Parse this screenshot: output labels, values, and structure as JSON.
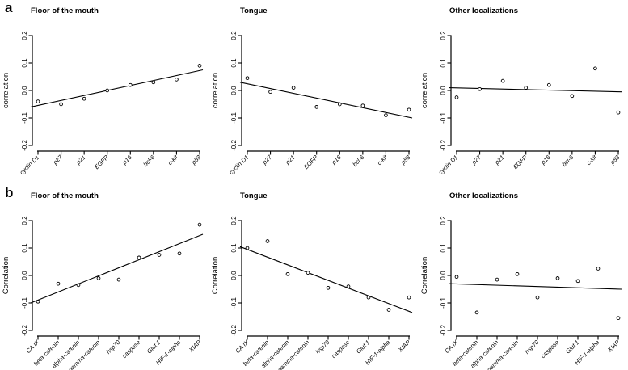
{
  "figure": {
    "background": "#ffffff",
    "ink_color": "#000000",
    "panels": [
      {
        "label": "a"
      },
      {
        "label": "b"
      }
    ]
  },
  "chart_data": [
    {
      "panel": "a",
      "type": "scatter",
      "title": "Floor of the mouth",
      "ylabel": "correlation",
      "xlabel": "",
      "ylim": [
        -0.2,
        0.2
      ],
      "yticks": [
        0.2,
        0.1,
        0.0,
        -0.1,
        -0.2
      ],
      "grid": false,
      "legend": "none",
      "marker": "open-circle",
      "marker_color": "#000000",
      "categories": [
        "cyclin D1",
        "p27",
        "p21",
        "EGFR",
        "p16",
        "bcl-6",
        "c-kit",
        "p53"
      ],
      "values": [
        -0.04,
        -0.05,
        -0.03,
        0.0,
        0.02,
        0.03,
        0.04,
        0.09
      ],
      "trend_line": {
        "y_at_left": -0.06,
        "y_at_right": 0.075
      }
    },
    {
      "panel": "a",
      "type": "scatter",
      "title": "Tongue",
      "ylabel": "correlation",
      "xlabel": "",
      "ylim": [
        -0.2,
        0.2
      ],
      "yticks": [
        0.2,
        0.1,
        0.0,
        -0.1,
        -0.2
      ],
      "grid": false,
      "legend": "none",
      "marker": "open-circle",
      "marker_color": "#000000",
      "categories": [
        "cyclin D1",
        "p27",
        "p21",
        "EGFR",
        "p16",
        "bcl-6",
        "c-kit",
        "p53"
      ],
      "values": [
        0.045,
        -0.005,
        0.01,
        -0.06,
        -0.05,
        -0.055,
        -0.09,
        -0.07
      ],
      "trend_line": {
        "y_at_left": 0.03,
        "y_at_right": -0.1
      }
    },
    {
      "panel": "a",
      "type": "scatter",
      "title": "Other localizations",
      "ylabel": "correlation",
      "xlabel": "",
      "ylim": [
        -0.2,
        0.2
      ],
      "yticks": [
        0.2,
        0.1,
        0.0,
        -0.1,
        -0.2
      ],
      "grid": false,
      "legend": "none",
      "marker": "open-circle",
      "marker_color": "#000000",
      "categories": [
        "cyclin D1",
        "p27",
        "p21",
        "EGFR",
        "p16",
        "bcl-6",
        "c-kit",
        "p53"
      ],
      "values": [
        -0.025,
        0.005,
        0.035,
        0.01,
        0.02,
        -0.02,
        0.08,
        -0.08
      ],
      "trend_line": {
        "y_at_left": 0.01,
        "y_at_right": -0.005
      }
    },
    {
      "panel": "b",
      "type": "scatter",
      "title": "Floor of the mouth",
      "ylabel": "Correlation",
      "xlabel": "",
      "ylim": [
        -0.2,
        0.2
      ],
      "yticks": [
        0.2,
        0.1,
        0.0,
        -0.1,
        -0.2
      ],
      "grid": false,
      "legend": "none",
      "marker": "open-circle",
      "marker_color": "#000000",
      "categories": [
        "CA IX",
        "beta-catenin",
        "alpha-catenin",
        "gamma-catenin",
        "hsp70",
        "caspase",
        "Glut 1",
        "HIF-1-alpha",
        "XIAP"
      ],
      "values": [
        -0.095,
        -0.03,
        -0.035,
        -0.01,
        -0.015,
        0.065,
        0.075,
        0.08,
        0.185
      ],
      "trend_line": {
        "y_at_left": -0.1,
        "y_at_right": 0.15
      }
    },
    {
      "panel": "b",
      "type": "scatter",
      "title": "Tongue",
      "ylabel": "Correlation",
      "xlabel": "",
      "ylim": [
        -0.2,
        0.2
      ],
      "yticks": [
        0.2,
        0.1,
        0.0,
        -0.1,
        -0.2
      ],
      "grid": false,
      "legend": "none",
      "marker": "open-circle",
      "marker_color": "#000000",
      "categories": [
        "CA IX",
        "beta-catenin",
        "alpha-catenin",
        "gamma-catenin",
        "hsp70",
        "caspase",
        "Glut 1",
        "HIF-1-alpha",
        "XIAP"
      ],
      "values": [
        0.1,
        0.125,
        0.005,
        0.01,
        -0.045,
        -0.04,
        -0.08,
        -0.125,
        -0.08
      ],
      "trend_line": {
        "y_at_left": 0.105,
        "y_at_right": -0.135
      }
    },
    {
      "panel": "b",
      "type": "scatter",
      "title": "Other localizations",
      "ylabel": "Correlation",
      "xlabel": "",
      "ylim": [
        -0.2,
        0.2
      ],
      "yticks": [
        0.2,
        0.1,
        0.0,
        -0.1,
        -0.2
      ],
      "grid": false,
      "legend": "none",
      "marker": "open-circle",
      "marker_color": "#000000",
      "categories": [
        "CA IX",
        "beta-catenin",
        "alpha-catenin",
        "gamma-catenin",
        "hsp70",
        "caspase",
        "Glut 1",
        "HIF-1-alpha",
        "XIAP"
      ],
      "values": [
        -0.005,
        -0.135,
        -0.015,
        0.005,
        -0.08,
        -0.01,
        -0.02,
        0.025,
        -0.155
      ],
      "trend_line": {
        "y_at_left": -0.03,
        "y_at_right": -0.05
      }
    }
  ]
}
